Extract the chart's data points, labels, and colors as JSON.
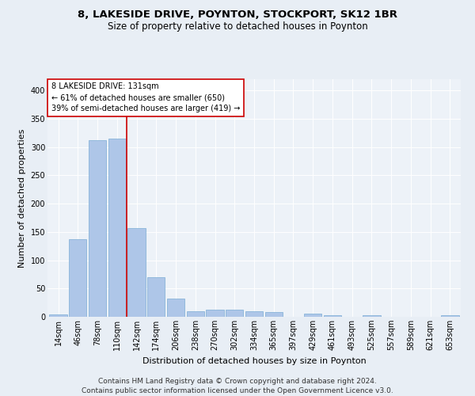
{
  "title1": "8, LAKESIDE DRIVE, POYNTON, STOCKPORT, SK12 1BR",
  "title2": "Size of property relative to detached houses in Poynton",
  "xlabel": "Distribution of detached houses by size in Poynton",
  "ylabel": "Number of detached properties",
  "footer": "Contains HM Land Registry data © Crown copyright and database right 2024.\nContains public sector information licensed under the Open Government Licence v3.0.",
  "annotation_title": "8 LAKESIDE DRIVE: 131sqm",
  "annotation_line1": "← 61% of detached houses are smaller (650)",
  "annotation_line2": "39% of semi-detached houses are larger (419) →",
  "bar_categories": [
    "14sqm",
    "46sqm",
    "78sqm",
    "110sqm",
    "142sqm",
    "174sqm",
    "206sqm",
    "238sqm",
    "270sqm",
    "302sqm",
    "334sqm",
    "365sqm",
    "397sqm",
    "429sqm",
    "461sqm",
    "493sqm",
    "525sqm",
    "557sqm",
    "589sqm",
    "621sqm",
    "653sqm"
  ],
  "bar_values": [
    4,
    137,
    312,
    315,
    157,
    70,
    32,
    10,
    13,
    13,
    10,
    8,
    0,
    5,
    3,
    0,
    3,
    0,
    0,
    0,
    3
  ],
  "bar_color": "#aec6e8",
  "bar_edge_color": "#7aadd4",
  "red_line_index": 3.5,
  "red_line_color": "#cc0000",
  "annotation_box_color": "#ffffff",
  "annotation_box_edge_color": "#cc0000",
  "bg_color": "#e8eef5",
  "plot_bg_color": "#edf2f8",
  "ylim": [
    0,
    420
  ],
  "yticks": [
    0,
    50,
    100,
    150,
    200,
    250,
    300,
    350,
    400
  ],
  "title1_fontsize": 9.5,
  "title2_fontsize": 8.5,
  "xlabel_fontsize": 8,
  "ylabel_fontsize": 8,
  "tick_fontsize": 7,
  "annotation_fontsize": 7,
  "footer_fontsize": 6.5
}
